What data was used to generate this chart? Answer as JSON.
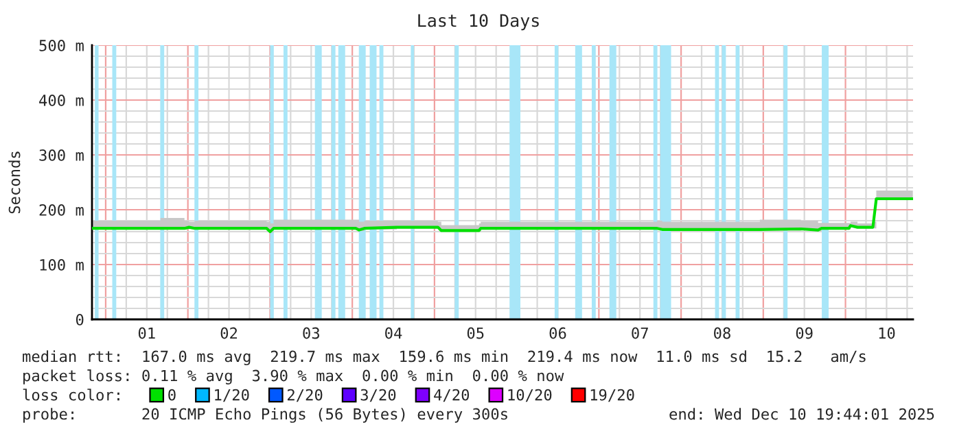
{
  "chart_data": {
    "type": "line",
    "title": "Last 10 Days",
    "ylabel": "Seconds",
    "xlim": [
      "2025-11-30T20:00",
      "2025-12-10T19:44"
    ],
    "xticks": [
      {
        "value": "2025-12-01T12:00",
        "label": "01"
      },
      {
        "value": "2025-12-02T12:00",
        "label": "02"
      },
      {
        "value": "2025-12-03T12:00",
        "label": "03"
      },
      {
        "value": "2025-12-04T12:00",
        "label": "04"
      },
      {
        "value": "2025-12-05T12:00",
        "label": "05"
      },
      {
        "value": "2025-12-06T12:00",
        "label": "06"
      },
      {
        "value": "2025-12-07T12:00",
        "label": "07"
      },
      {
        "value": "2025-12-08T12:00",
        "label": "08"
      },
      {
        "value": "2025-12-09T12:00",
        "label": "09"
      },
      {
        "value": "2025-12-10T12:00",
        "label": "10"
      }
    ],
    "ylim": [
      0,
      500
    ],
    "yticks": [
      {
        "value": 0,
        "label": "0"
      },
      {
        "value": 100,
        "label": "100 m"
      },
      {
        "value": 200,
        "label": "200 m"
      },
      {
        "value": 300,
        "label": "300 m"
      },
      {
        "value": 400,
        "label": "400 m"
      },
      {
        "value": 500,
        "label": "500 m"
      }
    ],
    "grid": true,
    "legend": "bottom",
    "marker": "none",
    "line_style": "solid",
    "series": [
      {
        "name": "0",
        "color": "#00e000",
        "x": [
          "2025-11-30T20:00",
          "2025-12-01T16:00",
          "2025-12-01T23:00",
          "2025-12-02T00:20",
          "2025-12-02T02:00",
          "2025-12-02T23:00",
          "2025-12-03T00:00",
          "2025-12-03T01:00",
          "2025-12-04T01:00",
          "2025-12-04T02:00",
          "2025-12-04T03:30",
          "2025-12-04T13:00",
          "2025-12-05T01:00",
          "2025-12-05T02:00",
          "2025-12-05T13:00",
          "2025-12-05T13:30",
          "2025-12-07T17:00",
          "2025-12-07T18:30",
          "2025-12-08T23:00",
          "2025-12-09T11:00",
          "2025-12-09T16:00",
          "2025-12-09T17:00",
          "2025-12-10T01:00",
          "2025-12-10T01:30",
          "2025-12-10T03:30",
          "2025-12-10T08:00",
          "2025-12-10T09:00",
          "2025-12-10T19:40"
        ],
        "values": [
          166,
          166,
          166,
          168,
          166,
          166,
          160,
          166,
          166,
          163,
          166,
          168,
          168,
          162,
          162,
          166,
          166,
          164,
          164,
          165,
          163,
          166,
          166,
          171,
          168,
          168,
          220,
          220
        ],
        "lower": [
          164,
          164,
          164,
          166,
          164,
          164,
          158,
          164,
          164,
          161,
          164,
          166,
          166,
          160,
          160,
          164,
          164,
          162,
          162,
          163,
          161,
          164,
          164,
          169,
          166,
          166,
          218,
          218
        ],
        "upper": [
          180,
          185,
          180,
          178,
          180,
          178,
          175,
          182,
          182,
          178,
          180,
          180,
          178,
          172,
          175,
          178,
          180,
          178,
          182,
          180,
          176,
          176,
          176,
          178,
          175,
          178,
          235,
          235
        ]
      },
      {
        "name": "1/20",
        "color": "#00b8ff",
        "values": [
          null
        ]
      },
      {
        "name": "2/20",
        "color": "#0059ff",
        "values": [
          null
        ]
      },
      {
        "name": "3/20",
        "color": "#5e00ff",
        "values": [
          null
        ]
      },
      {
        "name": "4/20",
        "color": "#7e00ff",
        "values": [
          null
        ]
      },
      {
        "name": "10/20",
        "color": "#dd00ff",
        "values": [
          null
        ]
      },
      {
        "name": "19/20",
        "color": "#ff0000",
        "values": [
          null
        ]
      }
    ],
    "bands": [
      {
        "axis": "x",
        "from": "2025-11-30T20:50",
        "to": "2025-11-30T21:55",
        "color": "#a8e6f8"
      },
      {
        "axis": "x",
        "from": "2025-12-01T01:55",
        "to": "2025-12-01T03:05",
        "color": "#a8e6f8"
      },
      {
        "axis": "x",
        "from": "2025-12-01T15:55",
        "to": "2025-12-01T17:05",
        "color": "#a8e6f8"
      },
      {
        "axis": "x",
        "from": "2025-12-02T01:55",
        "to": "2025-12-02T03:05",
        "color": "#a8e6f8"
      },
      {
        "axis": "x",
        "from": "2025-12-03T00:00",
        "to": "2025-12-03T01:05",
        "color": "#a8e6f8"
      },
      {
        "axis": "x",
        "from": "2025-12-03T03:55",
        "to": "2025-12-03T05:05",
        "color": "#a8e6f8"
      },
      {
        "axis": "x",
        "from": "2025-12-03T13:05",
        "to": "2025-12-03T15:05",
        "color": "#a8e6f8"
      },
      {
        "axis": "x",
        "from": "2025-12-03T17:55",
        "to": "2025-12-03T19:05",
        "color": "#a8e6f8"
      },
      {
        "axis": "x",
        "from": "2025-12-03T19:55",
        "to": "2025-12-03T21:55",
        "color": "#a8e6f8"
      },
      {
        "axis": "x",
        "from": "2025-12-04T01:55",
        "to": "2025-12-04T03:55",
        "color": "#a8e6f8"
      },
      {
        "axis": "x",
        "from": "2025-12-04T05:05",
        "to": "2025-12-04T07:05",
        "color": "#a8e6f8"
      },
      {
        "axis": "x",
        "from": "2025-12-04T07:55",
        "to": "2025-12-04T09:05",
        "color": "#a8e6f8"
      },
      {
        "axis": "x",
        "from": "2025-12-04T17:05",
        "to": "2025-12-04T18:00",
        "color": "#a8e6f8"
      },
      {
        "axis": "x",
        "from": "2025-12-05T05:55",
        "to": "2025-12-05T07:05",
        "color": "#a8e6f8"
      },
      {
        "axis": "x",
        "from": "2025-12-05T21:55",
        "to": "2025-12-06T01:05",
        "color": "#a8e6f8"
      },
      {
        "axis": "x",
        "from": "2025-12-06T11:05",
        "to": "2025-12-06T12:10",
        "color": "#a8e6f8"
      },
      {
        "axis": "x",
        "from": "2025-12-06T17:05",
        "to": "2025-12-06T19:05",
        "color": "#a8e6f8"
      },
      {
        "axis": "x",
        "from": "2025-12-06T21:55",
        "to": "2025-12-06T23:05",
        "color": "#a8e6f8"
      },
      {
        "axis": "x",
        "from": "2025-12-07T03:05",
        "to": "2025-12-07T05:05",
        "color": "#a8e6f8"
      },
      {
        "axis": "x",
        "from": "2025-12-07T15:55",
        "to": "2025-12-07T17:05",
        "color": "#a8e6f8"
      },
      {
        "axis": "x",
        "from": "2025-12-07T17:55",
        "to": "2025-12-07T21:05",
        "color": "#a8e6f8"
      },
      {
        "axis": "x",
        "from": "2025-12-08T09:55",
        "to": "2025-12-08T11:05",
        "color": "#a8e6f8"
      },
      {
        "axis": "x",
        "from": "2025-12-08T11:55",
        "to": "2025-12-08T13:05",
        "color": "#a8e6f8"
      },
      {
        "axis": "x",
        "from": "2025-12-08T15:55",
        "to": "2025-12-08T17:05",
        "color": "#a8e6f8"
      },
      {
        "axis": "x",
        "from": "2025-12-09T05:55",
        "to": "2025-12-09T07:05",
        "color": "#a8e6f8"
      },
      {
        "axis": "x",
        "from": "2025-12-09T17:05",
        "to": "2025-12-09T19:05",
        "color": "#a8e6f8"
      }
    ],
    "annotations": [
      "median rtt:  167.0 ms avg  219.7 ms max  159.6 ms min  219.4 ms now  11.0 ms sd  15.2   am/s",
      "packet loss: 0.11 % avg  3.90 % max  0.00 % min  0.00 % now",
      "loss color:",
      "probe:       20 ICMP Echo Pings (56 Bytes) every 300s",
      "end: Wed Dec 10 19:44:01 2025"
    ]
  }
}
